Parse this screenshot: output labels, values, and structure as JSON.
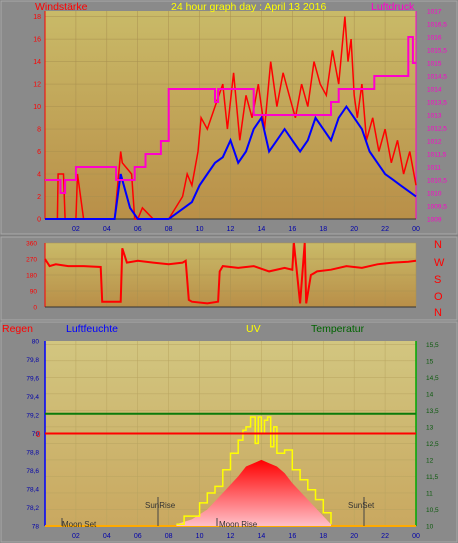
{
  "header": {
    "left_label": "Windstärke",
    "center_title": "24 hour graph day : April 13 2016",
    "right_label": "Luftdruck"
  },
  "compass": [
    "N",
    "W",
    "S",
    "O",
    "N"
  ],
  "lower_header": {
    "regen": "Regen",
    "luftfeuchte": "Luftfeuchte",
    "uv": "UV",
    "temperatur": "Temperatur"
  },
  "annotations": {
    "moon_set": "Moon Set",
    "sunrise": "SunRise",
    "moon_rise": "Moon Rise",
    "sunset": "SunSet",
    "rain_zero": "0"
  },
  "colors": {
    "wind_gust": "#ff0000",
    "wind_avg": "#0000ff",
    "pressure": "#ff00cc",
    "direction": "#ff0000",
    "uv_line": "#ffff00",
    "temperature_line": "#0b7a0b",
    "humidity_line": "#ff0000",
    "plot_bg": "#c8a860"
  },
  "chart_data": [
    {
      "type": "line",
      "xticks": [
        "02",
        "04",
        "06",
        "08",
        "10",
        "12",
        "14",
        "16",
        "18",
        "20",
        "22",
        "00"
      ],
      "y_left_ticks": [
        "0",
        "2",
        "4",
        "6",
        "8",
        "10",
        "12",
        "14",
        "16",
        "18"
      ],
      "y_left_range": [
        0,
        18.5
      ],
      "y_right_ticks": [
        "1009",
        "1009,5",
        "1010",
        "1010,5",
        "1011",
        "1011,5",
        "1012",
        "1012,5",
        "1013",
        "1013,5",
        "1014",
        "1014,5",
        "1015",
        "1015,5",
        "1016",
        "1016,5",
        "1017"
      ],
      "y_right_range": [
        1009,
        1017
      ],
      "series": [
        {
          "role": "wind_gust",
          "x": [
            0,
            0.8,
            0.85,
            1.2,
            1.3,
            2.0,
            2.1,
            2.5,
            3.5,
            4.5,
            4.9,
            5.0,
            5.6,
            5.8,
            6.0,
            6.3,
            7.0,
            8.0,
            8.9,
            9.2,
            9.5,
            9.9,
            10.1,
            10.5,
            11.0,
            11.5,
            11.8,
            12.2,
            12.6,
            13.0,
            13.4,
            13.8,
            14.2,
            14.6,
            15.0,
            15.4,
            15.8,
            16.2,
            16.6,
            17.0,
            17.4,
            17.8,
            18.2,
            18.6,
            19.0,
            19.4,
            19.6,
            19.8,
            20.0,
            20.2,
            20.5,
            20.8,
            21.2,
            21.6,
            22.0,
            22.4,
            22.8,
            23.2,
            23.6,
            24.0
          ],
          "y": [
            0,
            0,
            4,
            4,
            0,
            0,
            4,
            0,
            0,
            0,
            6,
            5,
            4,
            0,
            0,
            1,
            0,
            0,
            2,
            4,
            3,
            6,
            9,
            8,
            10,
            12,
            8,
            13,
            7,
            11,
            9,
            12,
            8,
            14,
            10,
            13,
            11,
            9,
            12,
            10,
            14,
            12,
            11,
            15,
            12,
            18,
            14,
            16,
            11,
            9,
            12,
            7,
            9,
            6,
            8,
            5,
            7,
            4,
            6,
            3
          ]
        },
        {
          "role": "wind_avg",
          "x": [
            0,
            4.5,
            4.9,
            5.1,
            5.5,
            6.0,
            8.0,
            9.0,
            9.5,
            10.0,
            10.5,
            11.0,
            11.5,
            12.0,
            12.5,
            13.0,
            13.5,
            14.0,
            14.5,
            15.0,
            15.5,
            16.0,
            16.5,
            17.0,
            17.5,
            18.0,
            18.5,
            19.0,
            19.5,
            20.0,
            20.5,
            21.0,
            21.5,
            22.0,
            22.5,
            23.0,
            23.5,
            24.0
          ],
          "y": [
            0,
            0,
            4,
            3,
            1,
            0,
            0,
            1,
            1.5,
            3,
            4,
            5,
            5.5,
            7,
            5,
            6,
            8,
            9,
            6,
            7,
            8,
            7,
            6,
            7,
            9,
            8,
            7,
            9,
            10,
            9,
            8,
            6,
            5,
            4,
            3.5,
            3,
            2.5,
            2
          ]
        },
        {
          "role": "pressure",
          "x": [
            0,
            1.0,
            1.0,
            1.3,
            1.3,
            2.0,
            2.0,
            4.6,
            4.6,
            5.8,
            5.8,
            6.5,
            6.5,
            7.5,
            7.5,
            8.0,
            8.0,
            11.0,
            11.0,
            11.2,
            11.2,
            13.5,
            13.5,
            18.5,
            18.5,
            19.0,
            19.0,
            21.3,
            21.3,
            23.5,
            23.5,
            23.8,
            23.8,
            24.0
          ],
          "y": [
            1010.5,
            1010.5,
            1010,
            1010,
            1010.5,
            1010.5,
            1011,
            1011,
            1010.5,
            1010.5,
            1011,
            1011,
            1011.5,
            1011.5,
            1012,
            1012,
            1014,
            1014,
            1013.5,
            1013.5,
            1014,
            1014,
            1013,
            1013,
            1013.5,
            1013.5,
            1014,
            1014,
            1014.5,
            1014.5,
            1016,
            1016,
            1015,
            1015
          ]
        }
      ]
    },
    {
      "type": "line",
      "y_ticks": [
        "0",
        "90",
        "180",
        "270",
        "360"
      ],
      "y_range": [
        0,
        360
      ],
      "series": [
        {
          "role": "direction",
          "x": [
            0,
            0.3,
            0.7,
            1.5,
            2.5,
            3.6,
            3.7,
            3.9,
            4.9,
            5.0,
            5.3,
            6.0,
            7.0,
            8.0,
            8.9,
            9.1,
            9.3,
            9.5,
            10.5,
            11.2,
            11.3,
            11.5,
            12.5,
            13.5,
            14.5,
            15.5,
            16.0,
            16.1,
            16.5,
            16.8,
            16.9,
            17.2,
            17.4,
            17.6,
            18.5,
            19.5,
            20.5,
            21.5,
            22.5,
            23.5,
            24.0
          ],
          "y": [
            270,
            230,
            240,
            230,
            230,
            225,
            30,
            30,
            30,
            330,
            250,
            260,
            250,
            240,
            250,
            260,
            40,
            30,
            20,
            30,
            200,
            230,
            220,
            230,
            200,
            220,
            210,
            360,
            20,
            360,
            20,
            180,
            190,
            200,
            210,
            230,
            220,
            240,
            250,
            255,
            260
          ]
        }
      ]
    },
    {
      "type": "area",
      "xticks": [
        "02",
        "04",
        "06",
        "08",
        "10",
        "12",
        "14",
        "16",
        "18",
        "20",
        "22",
        "00"
      ],
      "y_left_ticks": [
        "78",
        "78,2",
        "78,4",
        "78,6",
        "78,8",
        "79",
        "79,2",
        "79,4",
        "79,6",
        "79,8",
        "80"
      ],
      "y_left_range": [
        78,
        80
      ],
      "y_right_ticks": [
        "10",
        "10,5",
        "11",
        "11,5",
        "12",
        "12,5",
        "13",
        "13,5",
        "14",
        "14,5",
        "15",
        "15,5"
      ],
      "y_right_range": [
        10,
        15.6
      ],
      "series": [
        {
          "role": "uv_area",
          "x": [
            8.5,
            9.5,
            10.5,
            11.5,
            12.5,
            13.0,
            13.5,
            14.0,
            14.5,
            15.0,
            15.5,
            16.0,
            17.0,
            18.0,
            18.5
          ],
          "y": [
            10.05,
            10.2,
            10.5,
            11.0,
            11.5,
            11.8,
            11.9,
            12.0,
            11.9,
            11.8,
            11.6,
            11.3,
            10.8,
            10.3,
            10.05
          ]
        },
        {
          "role": "uv_line",
          "x": [
            8.5,
            9.0,
            10.0,
            10.5,
            11.0,
            11.5,
            12.0,
            12.5,
            12.8,
            13.0,
            13.3,
            13.6,
            13.8,
            14.0,
            14.2,
            14.4,
            14.6,
            14.8,
            15.0,
            15.5,
            16.0,
            16.5,
            17.0,
            17.5,
            18.0,
            18.5
          ],
          "y": [
            10.05,
            10.3,
            10.7,
            11.0,
            11.2,
            11.7,
            12.2,
            12.6,
            12.9,
            13.0,
            13.3,
            12.5,
            13.3,
            12.8,
            13.2,
            13.3,
            12.4,
            13.0,
            12.2,
            12.3,
            11.7,
            11.4,
            11.1,
            10.8,
            10.4,
            10.05
          ]
        },
        {
          "role": "temperature",
          "x": [
            0,
            24
          ],
          "y": [
            13.4,
            13.4
          ]
        },
        {
          "role": "humidity",
          "x": [
            0,
            24
          ],
          "y": [
            79.0,
            79.0
          ]
        }
      ]
    }
  ]
}
